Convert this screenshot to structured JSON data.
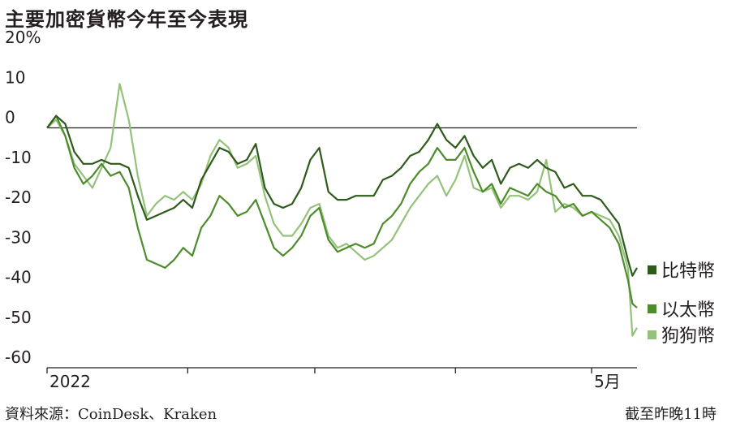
{
  "chart_data": {
    "type": "line",
    "title": "主要加密貨幣今年至今表現",
    "ylabel": "",
    "xlabel": "",
    "ylim": [
      -60,
      20
    ],
    "y_ticks": [
      "20%",
      "10",
      "0",
      "-10",
      "-20",
      "-30",
      "-40",
      "-50",
      "-60"
    ],
    "y_tick_values": [
      20,
      10,
      0,
      -10,
      -20,
      -30,
      -40,
      -50,
      -60
    ],
    "x_tick_labels": [
      "2022",
      "5月"
    ],
    "x_range": [
      "2022-01-01",
      "2022-05-11"
    ],
    "x_ticks": [
      "2022-01-01",
      "2022-02-01",
      "2022-03-01",
      "2022-04-01",
      "2022-05-01"
    ],
    "zero_line": true,
    "legend_placement": "right",
    "series": [
      {
        "name": "比特幣",
        "color": "#2e5a1c",
        "points": [
          [
            "2022-01-01",
            0
          ],
          [
            "2022-01-03",
            3
          ],
          [
            "2022-01-05",
            1
          ],
          [
            "2022-01-07",
            -6
          ],
          [
            "2022-01-09",
            -9
          ],
          [
            "2022-01-11",
            -9
          ],
          [
            "2022-01-13",
            -8
          ],
          [
            "2022-01-15",
            -9
          ],
          [
            "2022-01-17",
            -9
          ],
          [
            "2022-01-19",
            -10
          ],
          [
            "2022-01-21",
            -17
          ],
          [
            "2022-01-23",
            -23
          ],
          [
            "2022-01-25",
            -22
          ],
          [
            "2022-01-27",
            -21
          ],
          [
            "2022-01-29",
            -20
          ],
          [
            "2022-01-31",
            -18
          ],
          [
            "2022-02-02",
            -20
          ],
          [
            "2022-02-04",
            -13
          ],
          [
            "2022-02-06",
            -9
          ],
          [
            "2022-02-08",
            -5
          ],
          [
            "2022-02-10",
            -6
          ],
          [
            "2022-02-12",
            -9
          ],
          [
            "2022-02-14",
            -8
          ],
          [
            "2022-02-16",
            -4
          ],
          [
            "2022-02-18",
            -15
          ],
          [
            "2022-02-20",
            -19
          ],
          [
            "2022-02-22",
            -20
          ],
          [
            "2022-02-24",
            -19
          ],
          [
            "2022-02-26",
            -15
          ],
          [
            "2022-02-28",
            -8
          ],
          [
            "2022-03-02",
            -5
          ],
          [
            "2022-03-04",
            -16
          ],
          [
            "2022-03-06",
            -18
          ],
          [
            "2022-03-08",
            -18
          ],
          [
            "2022-03-10",
            -17
          ],
          [
            "2022-03-12",
            -17
          ],
          [
            "2022-03-14",
            -17
          ],
          [
            "2022-03-16",
            -13
          ],
          [
            "2022-03-18",
            -12
          ],
          [
            "2022-03-20",
            -10
          ],
          [
            "2022-03-22",
            -7
          ],
          [
            "2022-03-24",
            -6
          ],
          [
            "2022-03-26",
            -3
          ],
          [
            "2022-03-28",
            1
          ],
          [
            "2022-03-30",
            -3
          ],
          [
            "2022-04-01",
            -5
          ],
          [
            "2022-04-03",
            -2
          ],
          [
            "2022-04-05",
            -7
          ],
          [
            "2022-04-07",
            -10
          ],
          [
            "2022-04-09",
            -8
          ],
          [
            "2022-04-11",
            -14
          ],
          [
            "2022-04-13",
            -10
          ],
          [
            "2022-04-15",
            -9
          ],
          [
            "2022-04-17",
            -10
          ],
          [
            "2022-04-19",
            -8
          ],
          [
            "2022-04-21",
            -10
          ],
          [
            "2022-04-23",
            -11
          ],
          [
            "2022-04-25",
            -15
          ],
          [
            "2022-04-27",
            -14
          ],
          [
            "2022-04-29",
            -17
          ],
          [
            "2022-05-01",
            -17
          ],
          [
            "2022-05-03",
            -18
          ],
          [
            "2022-05-05",
            -21
          ],
          [
            "2022-05-07",
            -24
          ],
          [
            "2022-05-09",
            -33
          ],
          [
            "2022-05-10",
            -37
          ],
          [
            "2022-05-11",
            -35
          ]
        ]
      },
      {
        "name": "以太幣",
        "color": "#4c8c2b",
        "points": [
          [
            "2022-01-01",
            0
          ],
          [
            "2022-01-03",
            3
          ],
          [
            "2022-01-05",
            -2
          ],
          [
            "2022-01-07",
            -10
          ],
          [
            "2022-01-09",
            -14
          ],
          [
            "2022-01-11",
            -12
          ],
          [
            "2022-01-13",
            -9
          ],
          [
            "2022-01-15",
            -12
          ],
          [
            "2022-01-17",
            -11
          ],
          [
            "2022-01-19",
            -15
          ],
          [
            "2022-01-21",
            -25
          ],
          [
            "2022-01-23",
            -33
          ],
          [
            "2022-01-25",
            -34
          ],
          [
            "2022-01-27",
            -35
          ],
          [
            "2022-01-29",
            -33
          ],
          [
            "2022-01-31",
            -30
          ],
          [
            "2022-02-02",
            -32
          ],
          [
            "2022-02-04",
            -25
          ],
          [
            "2022-02-06",
            -22
          ],
          [
            "2022-02-08",
            -17
          ],
          [
            "2022-02-10",
            -19
          ],
          [
            "2022-02-12",
            -22
          ],
          [
            "2022-02-14",
            -21
          ],
          [
            "2022-02-16",
            -18
          ],
          [
            "2022-02-18",
            -24
          ],
          [
            "2022-02-20",
            -30
          ],
          [
            "2022-02-22",
            -32
          ],
          [
            "2022-02-24",
            -30
          ],
          [
            "2022-02-26",
            -27
          ],
          [
            "2022-02-28",
            -22
          ],
          [
            "2022-03-02",
            -20
          ],
          [
            "2022-03-04",
            -28
          ],
          [
            "2022-03-06",
            -31
          ],
          [
            "2022-03-08",
            -30
          ],
          [
            "2022-03-10",
            -29
          ],
          [
            "2022-03-12",
            -30
          ],
          [
            "2022-03-14",
            -29
          ],
          [
            "2022-03-16",
            -24
          ],
          [
            "2022-03-18",
            -22
          ],
          [
            "2022-03-20",
            -19
          ],
          [
            "2022-03-22",
            -14
          ],
          [
            "2022-03-24",
            -11
          ],
          [
            "2022-03-26",
            -9
          ],
          [
            "2022-03-28",
            -5
          ],
          [
            "2022-03-30",
            -8
          ],
          [
            "2022-04-01",
            -8
          ],
          [
            "2022-04-03",
            -5
          ],
          [
            "2022-04-05",
            -11
          ],
          [
            "2022-04-07",
            -16
          ],
          [
            "2022-04-09",
            -14
          ],
          [
            "2022-04-11",
            -19
          ],
          [
            "2022-04-13",
            -15
          ],
          [
            "2022-04-15",
            -16
          ],
          [
            "2022-04-17",
            -17
          ],
          [
            "2022-04-19",
            -14
          ],
          [
            "2022-04-21",
            -16
          ],
          [
            "2022-04-23",
            -17
          ],
          [
            "2022-04-25",
            -20
          ],
          [
            "2022-04-27",
            -19
          ],
          [
            "2022-04-29",
            -22
          ],
          [
            "2022-05-01",
            -21
          ],
          [
            "2022-05-03",
            -23
          ],
          [
            "2022-05-05",
            -25
          ],
          [
            "2022-05-07",
            -29
          ],
          [
            "2022-05-09",
            -38
          ],
          [
            "2022-05-10",
            -44
          ],
          [
            "2022-05-11",
            -45
          ]
        ]
      },
      {
        "name": "狗狗幣",
        "color": "#94c27a",
        "points": [
          [
            "2022-01-01",
            0
          ],
          [
            "2022-01-03",
            2
          ],
          [
            "2022-01-05",
            -2
          ],
          [
            "2022-01-07",
            -9
          ],
          [
            "2022-01-09",
            -12
          ],
          [
            "2022-01-11",
            -15
          ],
          [
            "2022-01-13",
            -10
          ],
          [
            "2022-01-15",
            -5
          ],
          [
            "2022-01-17",
            11
          ],
          [
            "2022-01-19",
            2
          ],
          [
            "2022-01-21",
            -12
          ],
          [
            "2022-01-23",
            -22
          ],
          [
            "2022-01-25",
            -19
          ],
          [
            "2022-01-27",
            -17
          ],
          [
            "2022-01-29",
            -18
          ],
          [
            "2022-01-31",
            -16
          ],
          [
            "2022-02-02",
            -18
          ],
          [
            "2022-02-04",
            -14
          ],
          [
            "2022-02-06",
            -7
          ],
          [
            "2022-02-08",
            -3
          ],
          [
            "2022-02-10",
            -5
          ],
          [
            "2022-02-12",
            -10
          ],
          [
            "2022-02-14",
            -9
          ],
          [
            "2022-02-16",
            -7
          ],
          [
            "2022-02-18",
            -17
          ],
          [
            "2022-02-20",
            -24
          ],
          [
            "2022-02-22",
            -27
          ],
          [
            "2022-02-24",
            -27
          ],
          [
            "2022-02-26",
            -24
          ],
          [
            "2022-02-28",
            -20
          ],
          [
            "2022-03-02",
            -19
          ],
          [
            "2022-03-04",
            -27
          ],
          [
            "2022-03-06",
            -30
          ],
          [
            "2022-03-08",
            -29
          ],
          [
            "2022-03-10",
            -31
          ],
          [
            "2022-03-12",
            -33
          ],
          [
            "2022-03-14",
            -32
          ],
          [
            "2022-03-16",
            -30
          ],
          [
            "2022-03-18",
            -28
          ],
          [
            "2022-03-20",
            -24
          ],
          [
            "2022-03-22",
            -20
          ],
          [
            "2022-03-24",
            -17
          ],
          [
            "2022-03-26",
            -14
          ],
          [
            "2022-03-28",
            -12
          ],
          [
            "2022-03-30",
            -17
          ],
          [
            "2022-04-01",
            -13
          ],
          [
            "2022-04-03",
            -7
          ],
          [
            "2022-04-05",
            -15
          ],
          [
            "2022-04-07",
            -16
          ],
          [
            "2022-04-09",
            -15
          ],
          [
            "2022-04-11",
            -20
          ],
          [
            "2022-04-13",
            -17
          ],
          [
            "2022-04-15",
            -17
          ],
          [
            "2022-04-17",
            -18
          ],
          [
            "2022-04-19",
            -16
          ],
          [
            "2022-04-21",
            -8
          ],
          [
            "2022-04-23",
            -21
          ],
          [
            "2022-04-25",
            -19
          ],
          [
            "2022-04-27",
            -20
          ],
          [
            "2022-04-29",
            -22
          ],
          [
            "2022-05-01",
            -21
          ],
          [
            "2022-05-03",
            -22
          ],
          [
            "2022-05-05",
            -23
          ],
          [
            "2022-05-07",
            -27
          ],
          [
            "2022-05-09",
            -35
          ],
          [
            "2022-05-10",
            -52
          ],
          [
            "2022-05-11",
            -50
          ]
        ]
      }
    ],
    "source": "資料來源：CoinDesk、Kraken",
    "note": "截至昨晚11時"
  }
}
